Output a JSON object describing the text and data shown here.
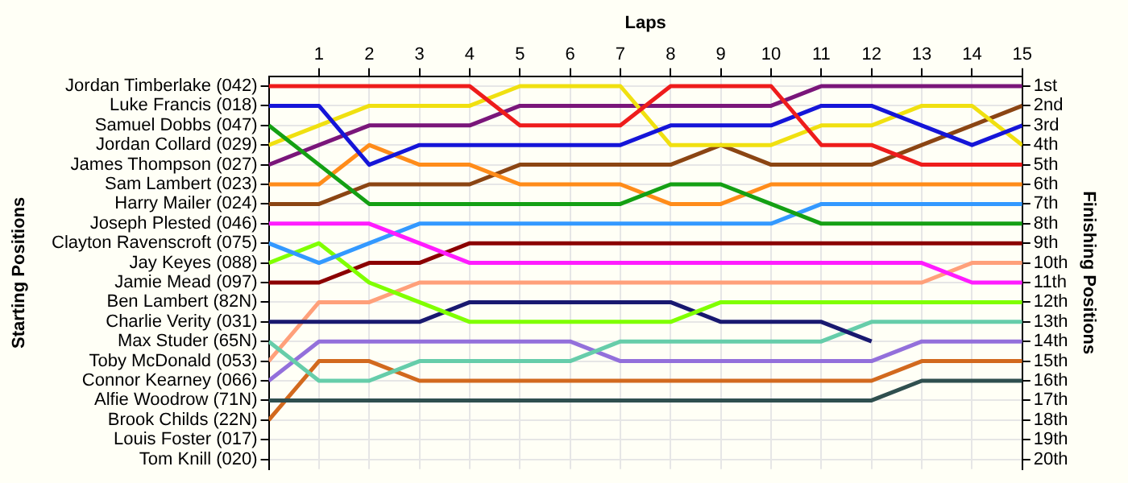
{
  "chart_data": {
    "type": "line",
    "xlabel": "Laps",
    "annotations": [
      "Starting Positions"
    ],
    "y2label": "Finishing Positions",
    "x": [
      0,
      1,
      2,
      3,
      4,
      5,
      6,
      7,
      8,
      9,
      10,
      11,
      12,
      13,
      14,
      15
    ],
    "xlim": [
      0,
      15
    ],
    "xticks": [
      1,
      2,
      3,
      4,
      5,
      6,
      7,
      8,
      9,
      10,
      11,
      12,
      13,
      14,
      15
    ],
    "y_categories": [
      "Jordan Timberlake (042)",
      "Luke Francis (018)",
      "Samuel Dobbs (047)",
      "Jordan Collard (029)",
      "James Thompson (027)",
      "Sam Lambert (023)",
      "Harry Mailer (024)",
      "Joseph Plested (046)",
      "Clayton Ravenscroft (075)",
      "Jay Keyes (088)",
      "Jamie Mead (097)",
      "Ben Lambert (82N)",
      "Charlie Verity (031)",
      "Max Studer (65N)",
      "Toby McDonald (053)",
      "Connor Kearney (066)",
      "Alfie Woodrow (71N)",
      "Brook Childs (22N)",
      "Louis Foster (017)",
      "Tom Knill (020)"
    ],
    "y2lim": [
      20.5,
      0.5
    ],
    "y2ticks": [
      {
        "value": 1,
        "label": "1st"
      },
      {
        "value": 2,
        "label": "2nd"
      },
      {
        "value": 3,
        "label": "3rd"
      },
      {
        "value": 4,
        "label": "4th"
      },
      {
        "value": 5,
        "label": "5th"
      },
      {
        "value": 6,
        "label": "6th"
      },
      {
        "value": 7,
        "label": "7th"
      },
      {
        "value": 8,
        "label": "8th"
      },
      {
        "value": 9,
        "label": "9th"
      },
      {
        "value": 10,
        "label": "10th"
      },
      {
        "value": 11,
        "label": "11th"
      },
      {
        "value": 12,
        "label": "12th"
      },
      {
        "value": 13,
        "label": "13th"
      },
      {
        "value": 14,
        "label": "14th"
      },
      {
        "value": 15,
        "label": "15th"
      },
      {
        "value": 16,
        "label": "16th"
      },
      {
        "value": 17,
        "label": "17th"
      },
      {
        "value": 18,
        "label": "18th"
      },
      {
        "value": 19,
        "label": "19th"
      },
      {
        "value": 20,
        "label": "20th"
      }
    ],
    "grid": true,
    "legend": false,
    "marker": "none",
    "line_style": "solid",
    "series": [
      {
        "color": "#ee1c1c",
        "axis": "y2",
        "values": [
          1,
          1,
          1,
          1,
          1,
          3,
          3,
          3,
          1,
          1,
          1,
          4,
          4,
          5,
          5,
          5
        ]
      },
      {
        "color": "#1515d8",
        "axis": "y2",
        "values": [
          2,
          2,
          5,
          4,
          4,
          4,
          4,
          4,
          3,
          3,
          3,
          2,
          2,
          3,
          4,
          3
        ]
      },
      {
        "color": "#14a014",
        "axis": "y2",
        "values": [
          3,
          5,
          7,
          7,
          7,
          7,
          7,
          7,
          6,
          6,
          7,
          8,
          8,
          8,
          8,
          8
        ]
      },
      {
        "color": "#f0e010",
        "axis": "y2",
        "values": [
          4,
          3,
          2,
          2,
          2,
          1,
          1,
          1,
          4,
          4,
          4,
          3,
          3,
          2,
          2,
          4
        ]
      },
      {
        "color": "#7a167a",
        "axis": "y2",
        "values": [
          5,
          4,
          3,
          3,
          3,
          2,
          2,
          2,
          2,
          2,
          2,
          1,
          1,
          1,
          1,
          1
        ]
      },
      {
        "color": "#ff8c1a",
        "axis": "y2",
        "values": [
          6,
          6,
          4,
          5,
          5,
          6,
          6,
          6,
          7,
          7,
          6,
          6,
          6,
          6,
          6,
          6
        ]
      },
      {
        "color": "#8b4513",
        "axis": "y2",
        "values": [
          7,
          7,
          6,
          6,
          6,
          5,
          5,
          5,
          5,
          4,
          5,
          5,
          5,
          4,
          3,
          2
        ]
      },
      {
        "color": "#ff1cff",
        "axis": "y2",
        "values": [
          8,
          8,
          8,
          9,
          10,
          10,
          10,
          10,
          10,
          10,
          10,
          10,
          10,
          10,
          11,
          11
        ]
      },
      {
        "color": "#3399ff",
        "axis": "y2",
        "values": [
          9,
          10,
          9,
          8,
          8,
          8,
          8,
          8,
          8,
          8,
          8,
          7,
          7,
          7,
          7,
          7
        ]
      },
      {
        "color": "#80ff00",
        "axis": "y2",
        "values": [
          10,
          9,
          11,
          12,
          13,
          13,
          13,
          13,
          13,
          12,
          12,
          12,
          12,
          12,
          12,
          12
        ]
      },
      {
        "color": "#8b0000",
        "axis": "y2",
        "values": [
          11,
          11,
          10,
          10,
          9,
          9,
          9,
          9,
          9,
          9,
          9,
          9,
          9,
          9,
          9,
          9
        ]
      },
      {
        "color": "#191970",
        "axis": "y2",
        "values": [
          13,
          13,
          13,
          13,
          12,
          12,
          12,
          12,
          12,
          13,
          13,
          13,
          14,
          null,
          null,
          null
        ]
      },
      {
        "color": "#66cdaa",
        "axis": "y2",
        "values": [
          14,
          16,
          16,
          15,
          15,
          15,
          15,
          14,
          14,
          14,
          14,
          14,
          13,
          13,
          13,
          13
        ]
      },
      {
        "color": "#ffa07a",
        "axis": "y2",
        "values": [
          15,
          12,
          12,
          11,
          11,
          11,
          11,
          11,
          11,
          11,
          11,
          11,
          11,
          11,
          10,
          10
        ]
      },
      {
        "color": "#9370db",
        "axis": "y2",
        "values": [
          16,
          14,
          14,
          14,
          14,
          14,
          14,
          15,
          15,
          15,
          15,
          15,
          15,
          14,
          14,
          14
        ]
      },
      {
        "color": "#2f4f4f",
        "axis": "y2",
        "values": [
          17,
          17,
          17,
          17,
          17,
          17,
          17,
          17,
          17,
          17,
          17,
          17,
          17,
          16,
          16,
          16
        ]
      },
      {
        "color": "#d2691e",
        "axis": "y2",
        "values": [
          18,
          15,
          15,
          16,
          16,
          16,
          16,
          16,
          16,
          16,
          16,
          16,
          16,
          15,
          15,
          15
        ]
      }
    ]
  }
}
